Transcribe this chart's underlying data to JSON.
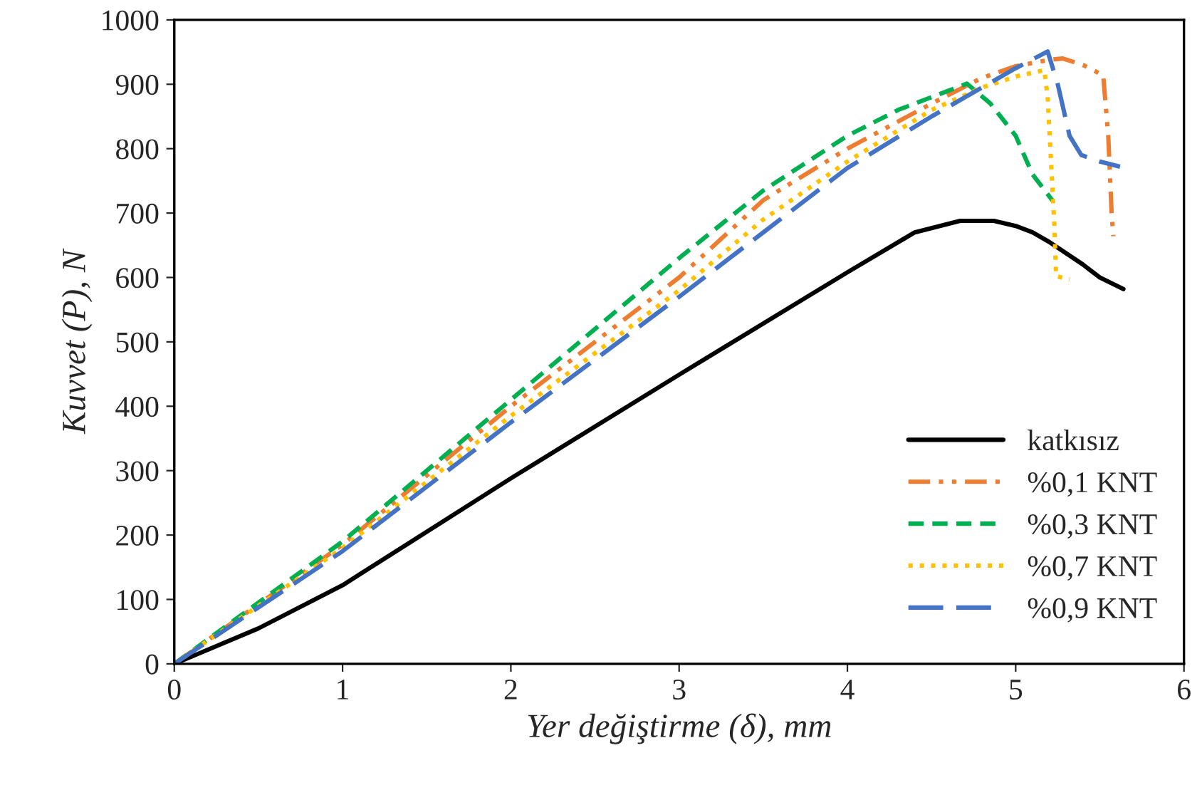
{
  "chart_data": {
    "type": "line",
    "xlabel": "Yer değiştirme (δ), mm",
    "ylabel": "Kuvvet (P), N",
    "xlim": [
      0,
      6
    ],
    "xticks": [
      0,
      1,
      2,
      3,
      4,
      5,
      6
    ],
    "ylim": [
      0,
      1000
    ],
    "yticks": [
      0,
      100,
      200,
      300,
      400,
      500,
      600,
      700,
      800,
      900,
      1000
    ],
    "grid": false,
    "legend": "bottom right",
    "marker": "none",
    "series": [
      {
        "name": "katkısız",
        "color": "#000000",
        "line_style": "solid",
        "x": [
          0,
          0.5,
          1,
          2,
          3,
          4,
          4.4,
          4.67,
          4.87,
          5.0,
          5.1,
          5.2,
          5.4,
          5.5,
          5.64
        ],
        "values": [
          0,
          55,
          122,
          288,
          449,
          608,
          670,
          688,
          688,
          680,
          670,
          655,
          620,
          600,
          582
        ]
      },
      {
        "name": "%0,1 KNT",
        "color": "#ed7d31",
        "line_style": "dashdot",
        "x": [
          0,
          1,
          2,
          3,
          3.5,
          4,
          4.5,
          4.8,
          5.0,
          5.2,
          5.28,
          5.4,
          5.52,
          5.55,
          5.57,
          5.58
        ],
        "values": [
          0,
          185,
          400,
          600,
          720,
          800,
          870,
          910,
          928,
          938,
          940,
          930,
          914,
          820,
          700,
          664
        ]
      },
      {
        "name": "%0,3 KNT",
        "color": "#00b050",
        "line_style": "dashed",
        "x": [
          0,
          1,
          2,
          2.5,
          3,
          3.5,
          4,
          4.3,
          4.6,
          4.71,
          4.85,
          5.0,
          5.1,
          5.22
        ],
        "values": [
          0,
          190,
          410,
          520,
          630,
          735,
          820,
          860,
          890,
          901,
          870,
          820,
          760,
          719
        ]
      },
      {
        "name": "%0,7 KNT",
        "color": "#ffc000",
        "line_style": "dotted",
        "x": [
          0,
          1,
          2,
          3,
          3.5,
          4,
          4.5,
          4.8,
          5.0,
          5.17,
          5.19,
          5.21,
          5.23,
          5.24,
          5.32
        ],
        "values": [
          0,
          180,
          385,
          580,
          690,
          780,
          860,
          895,
          912,
          922,
          880,
          780,
          680,
          602,
          597
        ]
      },
      {
        "name": "%0,9 KNT",
        "color": "#4472c4",
        "line_style": "longdash",
        "x": [
          0,
          1,
          2,
          3,
          3.5,
          4,
          4.5,
          4.8,
          5.0,
          5.19,
          5.25,
          5.32,
          5.39,
          5.5,
          5.62
        ],
        "values": [
          0,
          175,
          375,
          570,
          670,
          770,
          850,
          895,
          925,
          951,
          900,
          820,
          790,
          780,
          772
        ]
      }
    ]
  }
}
